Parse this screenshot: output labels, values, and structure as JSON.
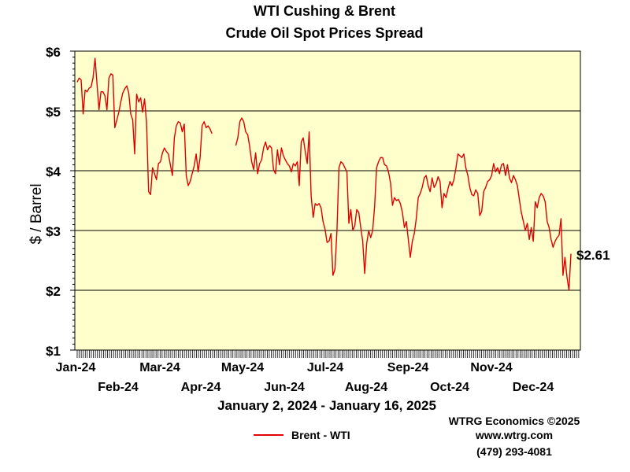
{
  "chart_data": {
    "type": "line",
    "title": "WTI Cushing & Brent",
    "subtitle": "Crude Oil Spot Prices Spread",
    "ylabel": "$ / Barrel",
    "xlabel": "January 2, 2024 - January 16, 2025",
    "ylim": [
      1,
      6
    ],
    "y_ticks": [
      "$1",
      "$2",
      "$3",
      "$4",
      "$5",
      "$6"
    ],
    "x_tick_labels_row1": [
      "Jan-24",
      "Mar-24",
      "May-24",
      "Jul-24",
      "Sep-24",
      "Nov-24"
    ],
    "x_tick_labels_row2": [
      "Feb-24",
      "Apr-24",
      "Jun-24",
      "Aug-24",
      "Oct-24",
      "Dec-24"
    ],
    "grid": true,
    "last_value_label": "$2.61",
    "series": [
      {
        "name": "Brent - WTI",
        "color": "#e00000",
        "values": [
          5.48,
          5.55,
          5.52,
          4.95,
          5.35,
          5.32,
          5.38,
          5.4,
          5.55,
          5.88,
          5.45,
          5.02,
          5.32,
          5.32,
          5.25,
          5.02,
          5.55,
          5.62,
          5.6,
          4.72,
          4.85,
          4.98,
          5.15,
          5.3,
          5.37,
          5.42,
          5.3,
          4.95,
          4.85,
          4.28,
          5.28,
          5.15,
          5.22,
          4.98,
          5.2,
          4.8,
          3.65,
          3.6,
          4.05,
          3.95,
          3.85,
          4.12,
          4.15,
          4.3,
          4.38,
          4.32,
          4.28,
          4.1,
          3.92,
          4.55,
          4.75,
          4.82,
          4.8,
          4.65,
          4.78,
          3.92,
          3.75,
          3.82,
          3.95,
          4.08,
          4.28,
          3.98,
          4.22,
          4.75,
          4.82,
          4.72,
          4.75,
          4.7,
          4.62,
          null,
          null,
          null,
          null,
          null,
          null,
          null,
          null,
          null,
          null,
          null,
          4.42,
          4.55,
          4.82,
          4.88,
          4.82,
          4.65,
          4.6,
          4.4,
          4.15,
          4.02,
          4.3,
          3.95,
          4.12,
          4.18,
          4.38,
          4.48,
          4.35,
          4.42,
          4.38,
          4.02,
          3.95,
          4.35,
          4.1,
          4.38,
          4.25,
          4.18,
          4.12,
          4.08,
          3.98,
          4.12,
          4.08,
          4.15,
          3.75,
          4.48,
          4.55,
          4.32,
          4.12,
          4.65,
          3.58,
          3.22,
          3.45,
          3.42,
          3.45,
          3.38,
          3.15,
          3.02,
          2.8,
          2.82,
          2.95,
          2.25,
          2.35,
          3.0,
          4.05,
          4.15,
          4.12,
          4.05,
          3.98,
          3.12,
          3.35,
          3.0,
          3.08,
          3.35,
          3.3,
          3.05,
          2.82,
          2.28,
          2.78,
          3.0,
          2.88,
          3.0,
          3.4,
          4.05,
          4.15,
          4.22,
          4.22,
          4.1,
          4.08,
          3.98,
          3.8,
          3.42,
          3.55,
          3.5,
          3.52,
          3.45,
          3.3,
          3.05,
          3.15,
          2.85,
          2.55,
          2.82,
          2.95,
          3.2,
          3.55,
          3.62,
          3.72,
          3.88,
          3.92,
          3.75,
          3.65,
          3.88,
          3.72,
          3.78,
          3.9,
          3.82,
          3.38,
          3.62,
          3.55,
          3.7,
          3.82,
          3.75,
          3.85,
          4.05,
          4.28,
          4.25,
          4.22,
          4.28,
          4.05,
          3.92,
          3.72,
          3.6,
          3.58,
          3.68,
          3.62,
          3.25,
          3.32,
          3.65,
          3.72,
          3.82,
          3.85,
          3.92,
          4.12,
          3.98,
          4.05,
          3.95,
          4.1,
          4.12,
          3.92,
          4.1,
          3.88,
          3.8,
          3.92,
          3.85,
          3.75,
          3.52,
          3.3,
          3.15,
          3.0,
          3.12,
          2.85,
          3.05,
          2.82,
          3.48,
          3.38,
          3.55,
          3.62,
          3.58,
          3.48,
          3.15,
          3.05,
          2.85,
          2.72,
          2.82,
          2.88,
          2.92,
          3.2,
          2.25,
          2.55,
          2.22,
          2.0,
          2.61
        ]
      }
    ]
  },
  "legend": {
    "label": "Brent - WTI"
  },
  "credits": {
    "line1": "WTRG Economics ©2025",
    "line2": "www.wtrg.com",
    "line3": "(479) 293-4081"
  }
}
